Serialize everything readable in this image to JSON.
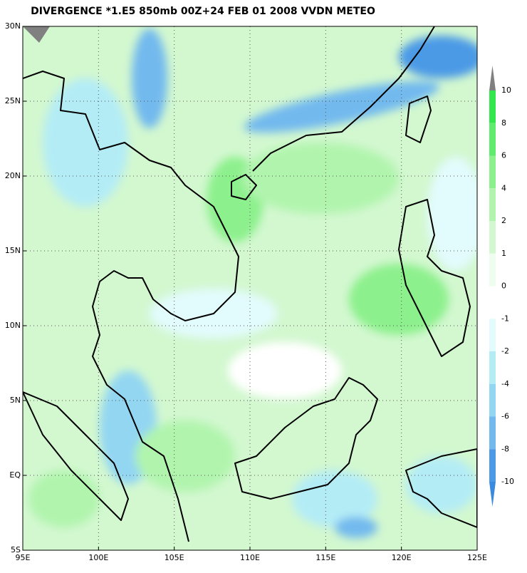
{
  "title": "DIVERGENCE *1.E5 850mb 00Z+24 FEB 01 2008 VVDN METEO",
  "map": {
    "lon_labels": [
      "95E",
      "100E",
      "105E",
      "110E",
      "115E",
      "120E",
      "125E"
    ],
    "lat_labels": [
      "30N",
      "25N",
      "20N",
      "15N",
      "10N",
      "5N",
      "EQ",
      "5S"
    ]
  },
  "colorbar": {
    "labels": [
      "10",
      "8",
      "6",
      "4",
      "2",
      "1",
      "0",
      "-1",
      "-2",
      "-4",
      "-6",
      "-8",
      "-10"
    ],
    "colors": [
      "#808080",
      "#33e64d",
      "#5fec6e",
      "#8cf08c",
      "#b0f4ad",
      "#d3f8d0",
      "#eefdee",
      "#ffffff",
      "#e2fbfd",
      "#b4ecf6",
      "#93d6f2",
      "#72b9ee",
      "#4c9ae6",
      "#3a8ae0"
    ]
  }
}
